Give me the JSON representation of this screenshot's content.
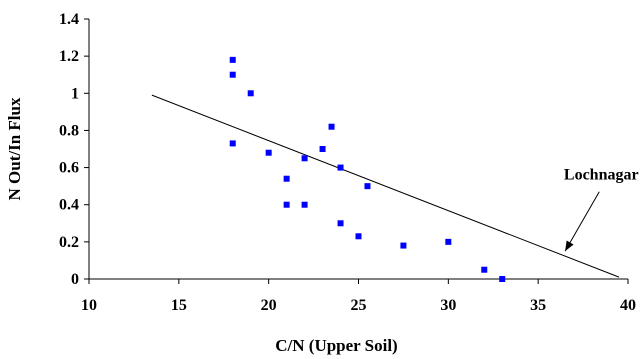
{
  "chart_data": {
    "type": "scatter",
    "title": "",
    "xlabel": "C/N (Upper Soil)",
    "ylabel": "N Out/In Flux",
    "xlim": [
      10,
      40
    ],
    "ylim": [
      0,
      1.4
    ],
    "xticks": [
      10,
      15,
      20,
      25,
      30,
      35,
      40
    ],
    "yticks": [
      0,
      0.2,
      0.4,
      0.6,
      0.8,
      1,
      1.2,
      1.4
    ],
    "xtick_labels": [
      "10",
      "15",
      "20",
      "25",
      "30",
      "35",
      "40"
    ],
    "ytick_labels": [
      "0",
      "0.2",
      "0.4",
      "0.6",
      "0.8",
      "1",
      "1.2",
      "1.4"
    ],
    "grid": false,
    "marker_color": "#0000ff",
    "line_color": "#000000",
    "points": [
      {
        "x": 18,
        "y": 1.18
      },
      {
        "x": 18,
        "y": 1.1
      },
      {
        "x": 19,
        "y": 1.0
      },
      {
        "x": 18,
        "y": 0.73
      },
      {
        "x": 20,
        "y": 0.68
      },
      {
        "x": 21,
        "y": 0.54
      },
      {
        "x": 21,
        "y": 0.4
      },
      {
        "x": 22,
        "y": 0.65
      },
      {
        "x": 22,
        "y": 0.4
      },
      {
        "x": 23,
        "y": 0.7
      },
      {
        "x": 23.5,
        "y": 0.82
      },
      {
        "x": 24,
        "y": 0.6
      },
      {
        "x": 24,
        "y": 0.3
      },
      {
        "x": 25,
        "y": 0.23
      },
      {
        "x": 25.5,
        "y": 0.5
      },
      {
        "x": 27.5,
        "y": 0.18
      },
      {
        "x": 30,
        "y": 0.2
      },
      {
        "x": 32,
        "y": 0.05
      },
      {
        "x": 33,
        "y": 0.0
      }
    ],
    "trend_line": {
      "x": [
        13.5,
        39.5
      ],
      "y": [
        0.99,
        0.01
      ]
    },
    "annotation": {
      "text": "Lochnagar",
      "arrow_from": {
        "x": 38.4,
        "y": 0.47
      },
      "arrow_to": {
        "x": 36.5,
        "y": 0.15
      }
    }
  }
}
